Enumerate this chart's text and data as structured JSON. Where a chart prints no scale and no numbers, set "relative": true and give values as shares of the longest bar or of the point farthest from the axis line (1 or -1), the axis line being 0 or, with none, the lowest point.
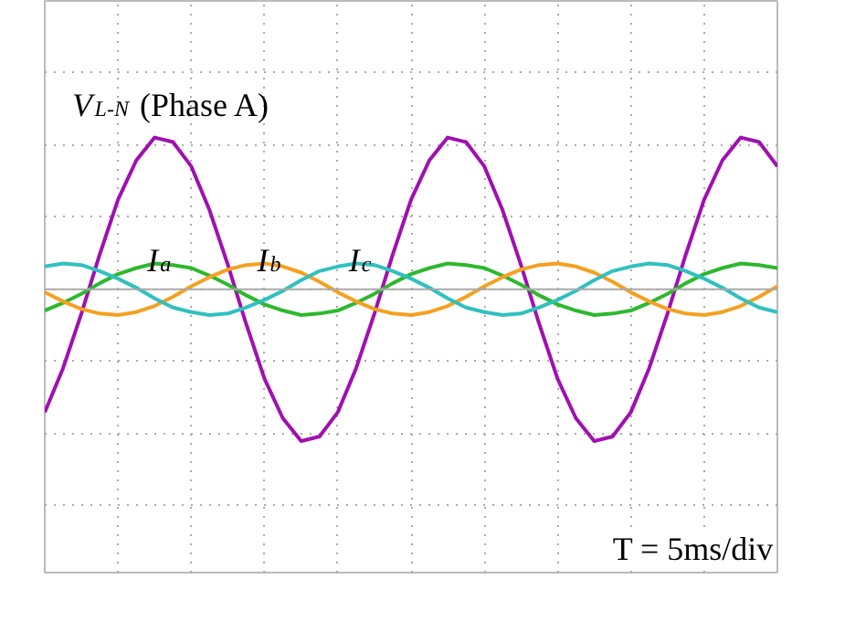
{
  "chart_data": {
    "type": "line",
    "relative": true,
    "grid": true,
    "legend": false,
    "categories": [
      null,
      null,
      null,
      null,
      null,
      null,
      null,
      null,
      null,
      null,
      null,
      null,
      null,
      null,
      null,
      null,
      null,
      null,
      null,
      null,
      null,
      null,
      null,
      null,
      null,
      null,
      null,
      null,
      null,
      null,
      null,
      null,
      null,
      null,
      null,
      null,
      null,
      null,
      null,
      null,
      null
    ],
    "series": [
      {
        "name": "V$_{L-N}$ (Phase A)",
        "color": "#a010b0",
        "values": [
          -0.81,
          -0.52,
          -0.16,
          0.23,
          0.59,
          0.85,
          1,
          0.97,
          0.81,
          0.52,
          0.16,
          -0.23,
          -0.59,
          -0.85,
          -1,
          -0.97,
          -0.81,
          -0.52,
          -0.16,
          0.23,
          0.59,
          0.85,
          1,
          0.97,
          0.81,
          0.52,
          0.16,
          -0.23,
          -0.59,
          -0.85,
          -1,
          -0.97,
          -0.81,
          -0.52,
          -0.16,
          0.23,
          0.59,
          0.85,
          1,
          0.97,
          0.81
        ]
      },
      {
        "name": "I$_{a}$",
        "color": "#2db82d",
        "values": [
          -0.14,
          -0.09,
          -0.03,
          0.04,
          0.1,
          0.14,
          0.17,
          0.16,
          0.14,
          0.09,
          0.03,
          -0.04,
          -0.1,
          -0.14,
          -0.17,
          -0.16,
          -0.14,
          -0.09,
          -0.03,
          0.04,
          0.1,
          0.14,
          0.17,
          0.16,
          0.14,
          0.09,
          0.03,
          -0.04,
          -0.1,
          -0.14,
          -0.17,
          -0.16,
          -0.14,
          -0.09,
          -0.03,
          0.04,
          0.1,
          0.14,
          0.17,
          0.16,
          0.14
        ]
      },
      {
        "name": "I$_{b}$",
        "color": "#f5a020",
        "values": [
          -0.02,
          -0.08,
          -0.13,
          -0.16,
          -0.17,
          -0.15,
          -0.11,
          -0.05,
          0.02,
          0.08,
          0.13,
          0.16,
          0.17,
          0.15,
          0.11,
          0.05,
          -0.02,
          -0.08,
          -0.13,
          -0.16,
          -0.17,
          -0.15,
          -0.11,
          -0.05,
          0.02,
          0.08,
          0.13,
          0.16,
          0.17,
          0.15,
          0.11,
          0.05,
          -0.02,
          -0.08,
          -0.13,
          -0.16,
          -0.17,
          -0.15,
          -0.11,
          -0.05,
          0.02
        ]
      },
      {
        "name": "I$_{c}$",
        "color": "#30c0c0",
        "values": [
          0.15,
          0.17,
          0.16,
          0.12,
          0.07,
          0.01,
          -0.06,
          -0.12,
          -0.15,
          -0.17,
          -0.16,
          -0.12,
          -0.07,
          -0.01,
          0.06,
          0.12,
          0.15,
          0.17,
          0.16,
          0.12,
          0.07,
          0.01,
          -0.06,
          -0.12,
          -0.15,
          -0.17,
          -0.16,
          -0.12,
          -0.07,
          -0.01,
          0.06,
          0.12,
          0.15,
          0.17,
          0.16,
          0.12,
          0.07,
          0.01,
          -0.06,
          -0.12,
          -0.15
        ]
      }
    ],
    "annotations": [
      "T = 5ms/div"
    ]
  }
}
